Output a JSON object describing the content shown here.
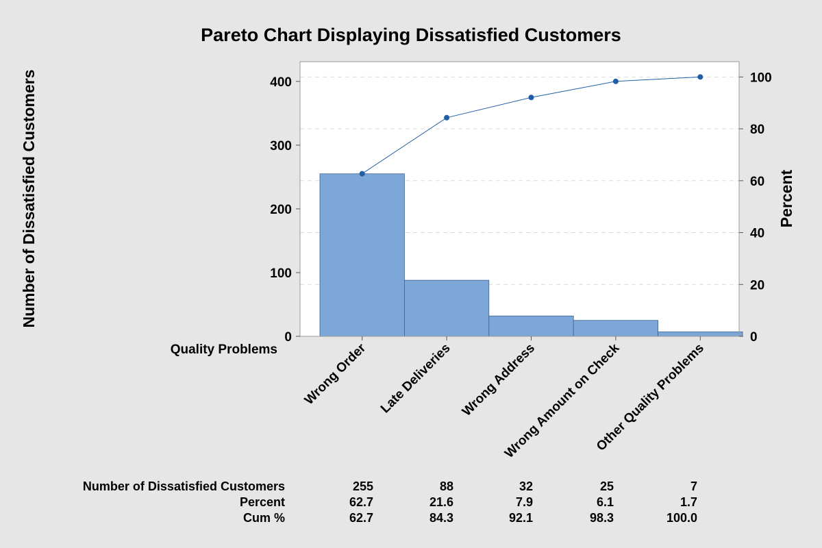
{
  "chart_data": {
    "type": "bar",
    "title": "Pareto Chart Displaying Dissatisfied Customers",
    "xlabel": "Quality Problems",
    "ylabel": "Number of Dissatisfied Customers",
    "y2label": "Percent",
    "categories": [
      "Wrong Order",
      "Late Deliveries",
      "Wrong Address",
      "Wrong Amount on Check",
      "Other Quality Problems"
    ],
    "series": [
      {
        "type": "bar",
        "values": [
          255,
          88,
          32,
          25,
          7
        ]
      },
      {
        "type": "line",
        "axis": "right",
        "values": [
          62.7,
          84.3,
          92.1,
          98.3,
          100.0
        ]
      }
    ],
    "ylim": [
      0,
      431
    ],
    "y2lim": [
      0,
      105.9
    ],
    "yticks": [
      0,
      100,
      200,
      300,
      400
    ],
    "y2ticks": [
      0,
      20,
      40,
      60,
      80,
      100
    ],
    "grid": true,
    "colors": {
      "bar": "#7da7d9",
      "bar_edge": "#3c5f8a",
      "line": "#1f5fa8",
      "grid": "#d9d9d9",
      "plot_bg": "#ffffff",
      "page_bg": "#e6e6e6"
    },
    "table": {
      "rows": [
        {
          "label": "Number of Dissatisfied Customers",
          "values": [
            "255",
            "88",
            "32",
            "25",
            "7"
          ]
        },
        {
          "label": "Percent",
          "values": [
            "62.7",
            "21.6",
            "7.9",
            "6.1",
            "1.7"
          ]
        },
        {
          "label": "Cum %",
          "values": [
            "62.7",
            "84.3",
            "92.1",
            "98.3",
            "100.0"
          ]
        }
      ]
    }
  }
}
